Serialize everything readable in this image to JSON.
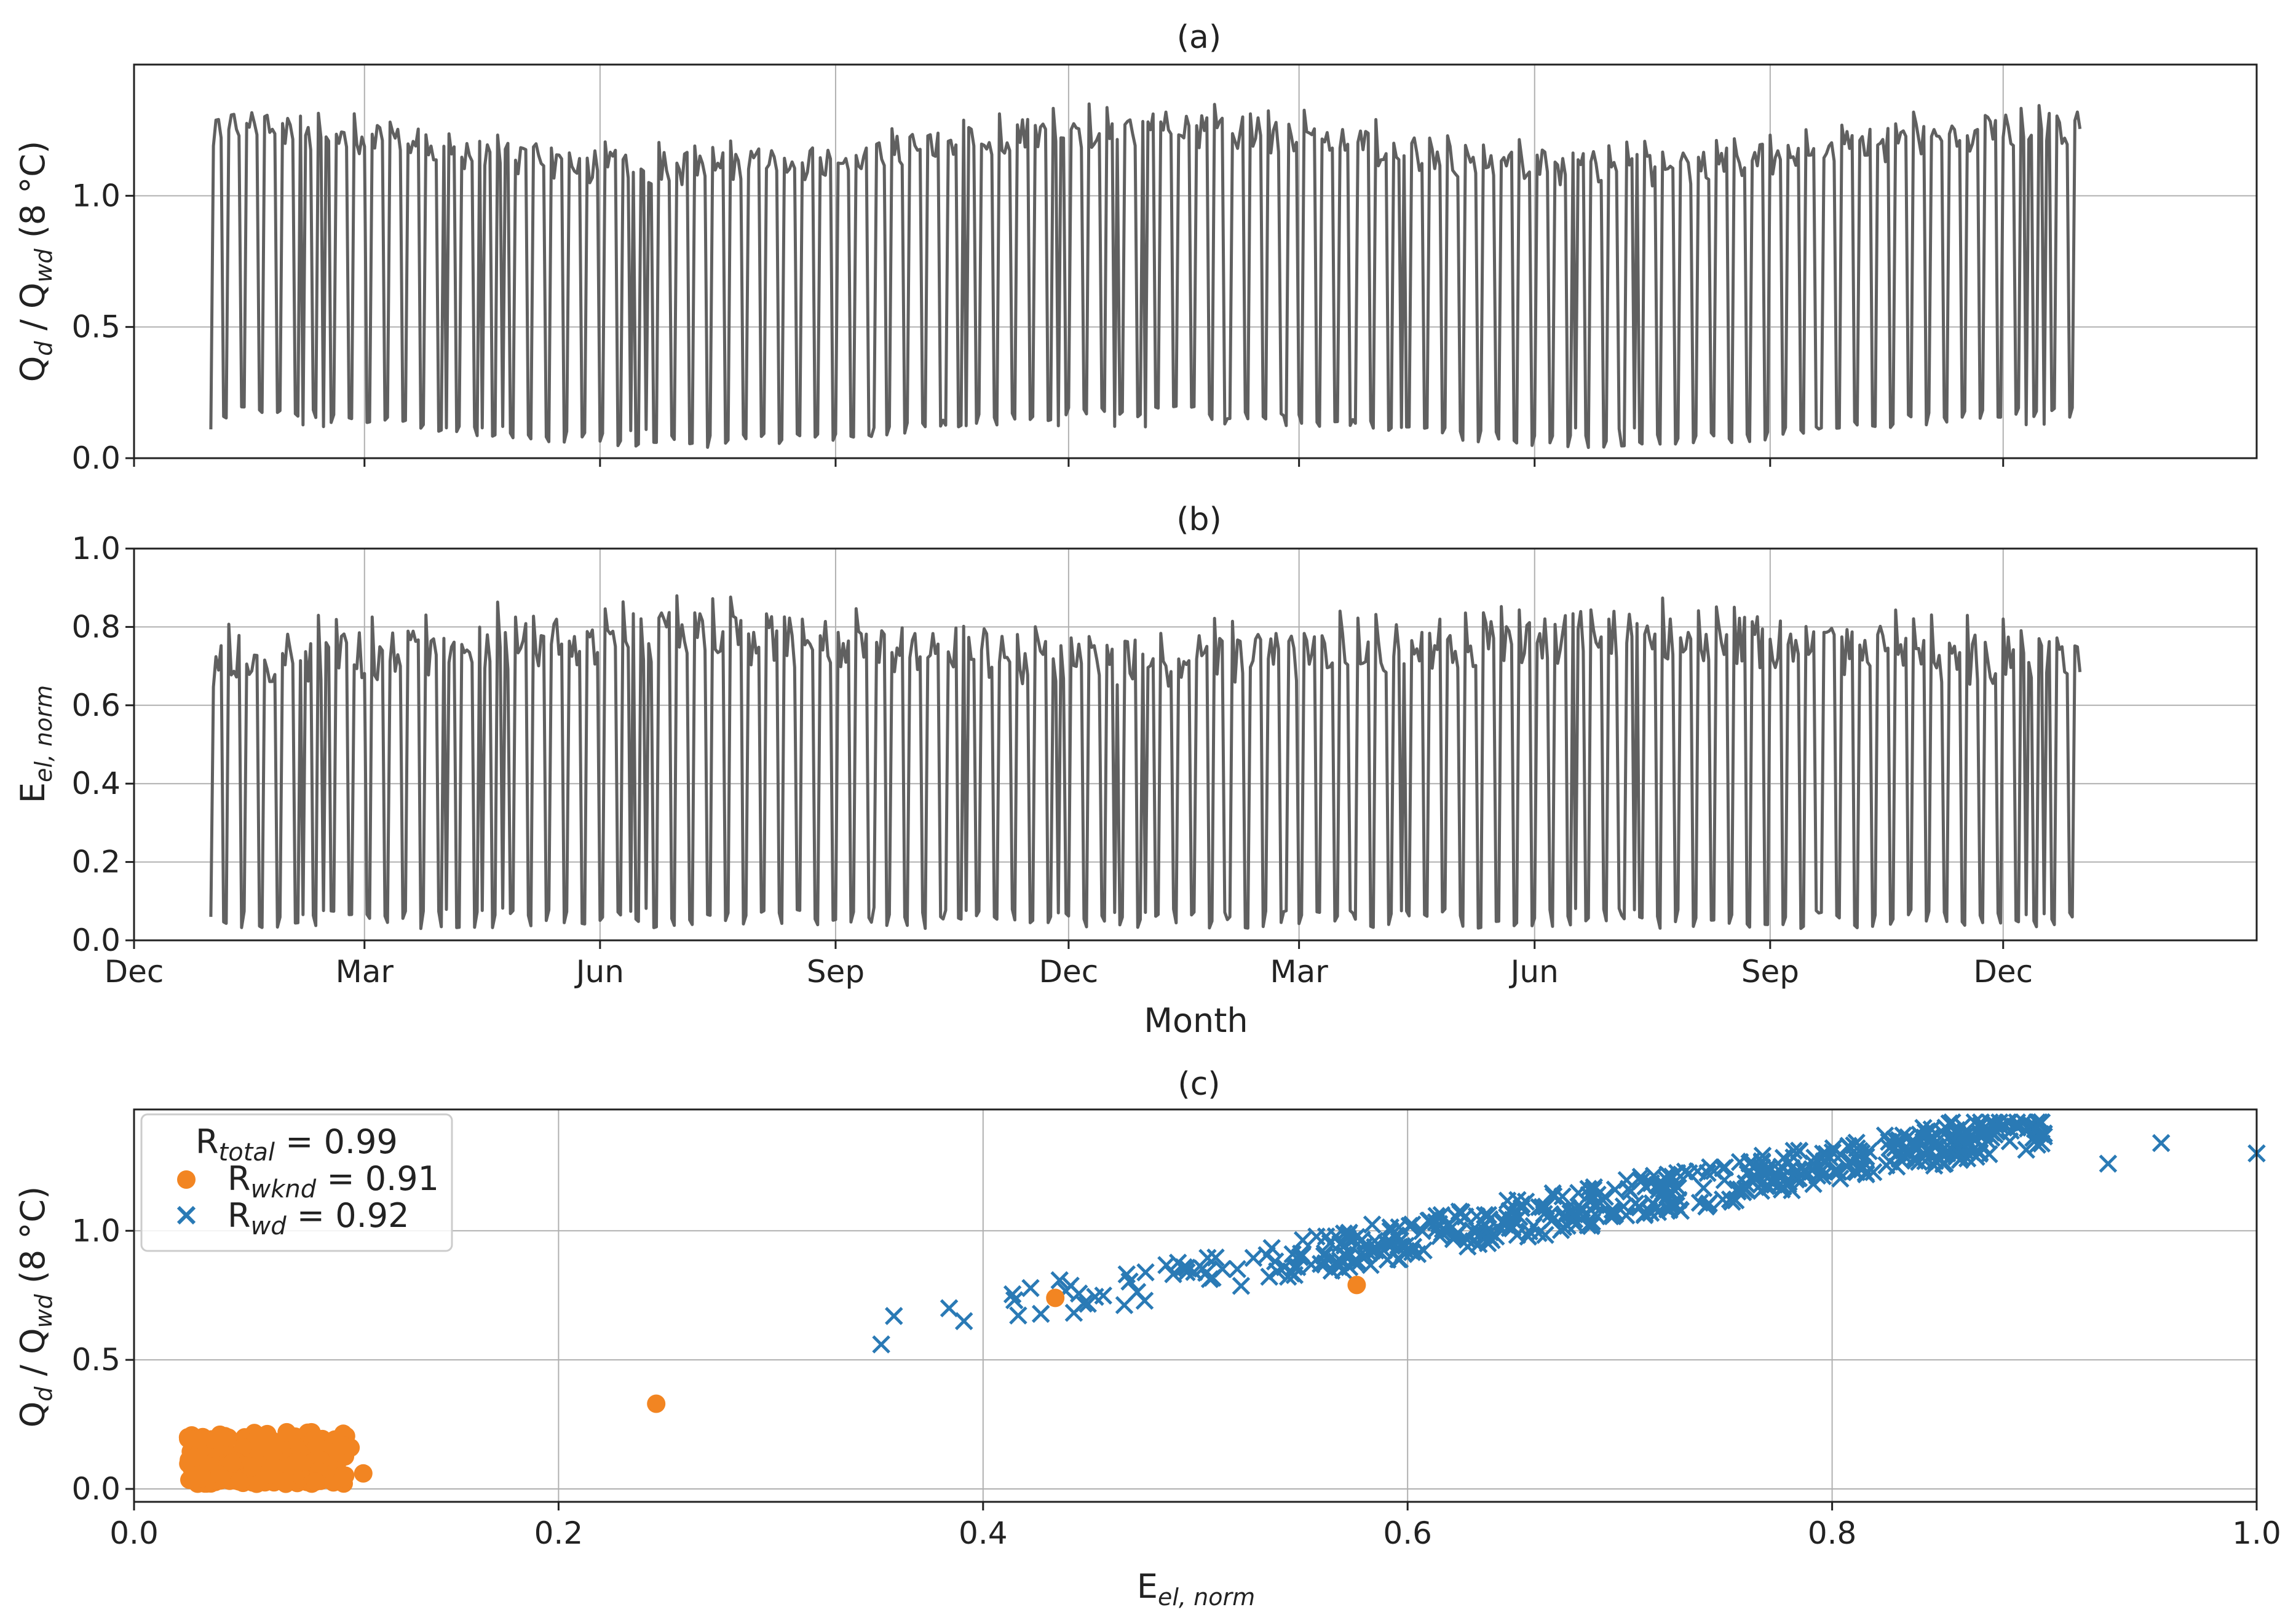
{
  "figure": {
    "line_color": "#606060",
    "weekend_color": "#f28522",
    "weekday_color": "#2a7ab5"
  },
  "chart_data": [
    {
      "type": "line",
      "title": "(a)",
      "ylabel": {
        "main": "Q",
        "sub": "d",
        "mid": " / Q",
        "sub2": "wd",
        "tail": " (8 °C)"
      },
      "ylim": [
        0,
        1.5
      ],
      "yticks": [
        "0.0",
        "0.5",
        "1.0"
      ],
      "ytick_values": [
        0,
        0.5,
        1.0
      ],
      "x_day_range": [
        0,
        829
      ],
      "x_months_days": [
        0,
        90,
        182,
        274,
        365,
        455,
        547,
        639,
        730
      ],
      "series_start_day": 30,
      "series_end_day": 760,
      "weekday_level": [
        1.05,
        1.35
      ],
      "weekend_level": [
        0.04,
        0.2
      ],
      "grid": true
    },
    {
      "type": "line",
      "title": "(b)",
      "ylabel": {
        "main": "E",
        "sub": "el, norm"
      },
      "ylim": [
        0,
        1.0
      ],
      "yticks": [
        "0.0",
        "0.2",
        "0.4",
        "0.6",
        "0.8",
        "1.0"
      ],
      "ytick_values": [
        0,
        0.2,
        0.4,
        0.6,
        0.8,
        1.0
      ],
      "xticks": [
        "Dec",
        "Mar",
        "Jun",
        "Sep",
        "Dec",
        "Mar",
        "Jun",
        "Sep",
        "Dec"
      ],
      "xlabel": "Month",
      "weekday_level": [
        0.6,
        0.9
      ],
      "weekend_level": [
        0.03,
        0.08
      ],
      "grid": true
    },
    {
      "type": "scatter",
      "title": "(c)",
      "xlabel": {
        "main": "E",
        "sub": "el, norm"
      },
      "ylabel": {
        "main": "Q",
        "sub": "d",
        "mid": " / Q",
        "sub2": "wd",
        "tail": " (8 °C)"
      },
      "xlim": [
        0,
        1.0
      ],
      "ylim": [
        -0.05,
        1.47
      ],
      "xticks": [
        "0.0",
        "0.2",
        "0.4",
        "0.6",
        "0.8",
        "1.0"
      ],
      "xtick_values": [
        0,
        0.2,
        0.4,
        0.6,
        0.8,
        1.0
      ],
      "yticks": [
        "0.0",
        "0.5",
        "1.0"
      ],
      "ytick_values": [
        0,
        0.5,
        1.0
      ],
      "legend": {
        "title": {
          "main": "R",
          "sub": "total",
          "tail": " = 0.99"
        },
        "weekend": {
          "main": "R",
          "sub": "wknd",
          "tail": " = 0.91"
        },
        "weekday": {
          "main": "R",
          "sub": "wd",
          "tail": " = 0.92"
        },
        "placement": "top-left"
      },
      "weekend_outliers": [
        [
          0.246,
          0.33
        ],
        [
          0.434,
          0.74
        ],
        [
          0.576,
          0.79
        ],
        [
          0.108,
          0.06
        ],
        [
          0.102,
          0.16
        ]
      ],
      "weekday_outliers": [
        [
          0.352,
          0.56
        ],
        [
          0.358,
          0.67
        ],
        [
          0.384,
          0.7
        ],
        [
          0.391,
          0.65
        ],
        [
          0.045,
          0.13
        ],
        [
          0.062,
          0.12
        ],
        [
          0.955,
          1.34
        ],
        [
          1.0,
          1.3
        ],
        [
          0.93,
          1.26
        ]
      ],
      "weekday_cluster": {
        "x_range": [
          0.41,
          0.9
        ],
        "trend": "Q ≈ 0.1 + 1.45·E"
      },
      "weekend_cluster": {
        "x_range": [
          0.025,
          0.1
        ],
        "y_range": [
          0.02,
          0.22
        ]
      },
      "grid": true
    }
  ]
}
